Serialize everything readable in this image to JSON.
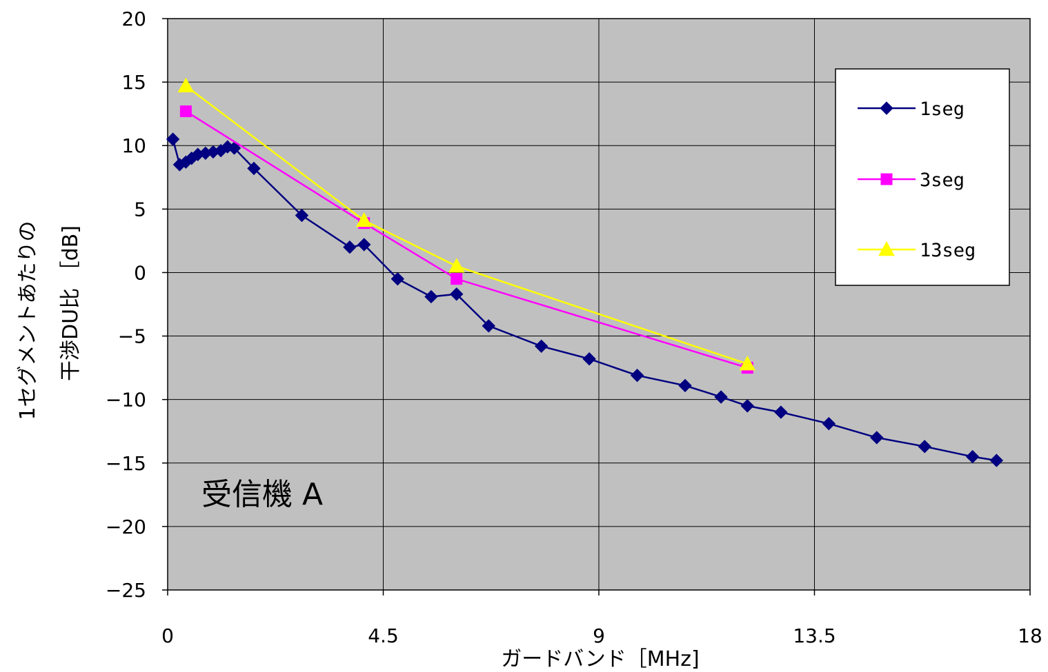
{
  "chart_data": {
    "type": "line",
    "title": "",
    "xlabel": "ガードバンド［MHz]",
    "ylabel_lines": [
      "1セグメントあたりの",
      "干渉DU比 ［dB]"
    ],
    "xlim": [
      0,
      18
    ],
    "ylim": [
      -25,
      20
    ],
    "x_ticks": [
      0,
      4.5,
      9,
      13.5,
      18
    ],
    "x_tick_labels": [
      "0",
      "4.5",
      "9",
      "13.5",
      "18"
    ],
    "y_ticks": [
      20,
      15,
      10,
      5,
      0,
      -5,
      -10,
      -15,
      -20,
      -25
    ],
    "y_tick_labels": [
      "20",
      "15",
      "10",
      "5",
      "0",
      "−5",
      "−10",
      "−15",
      "−20",
      "−25"
    ],
    "grid": true,
    "plot_background": "#c0c0c0",
    "legend_position": "top-right",
    "annotation": "受信機 A",
    "series": [
      {
        "name": "1seg",
        "color": "#000080",
        "marker": "diamond",
        "x": [
          0.11,
          0.25,
          0.38,
          0.5,
          0.63,
          0.79,
          0.95,
          1.11,
          1.25,
          1.39,
          1.8,
          2.8,
          3.8,
          4.1,
          4.8,
          5.5,
          6.03,
          6.7,
          7.8,
          8.8,
          9.8,
          10.8,
          11.55,
          12.1,
          12.8,
          13.8,
          14.8,
          15.8,
          16.8,
          17.3
        ],
        "y": [
          10.5,
          8.5,
          8.7,
          9.0,
          9.3,
          9.4,
          9.5,
          9.6,
          9.9,
          9.8,
          8.2,
          4.5,
          2.0,
          2.2,
          -0.5,
          -1.9,
          -1.7,
          -4.2,
          -5.8,
          -6.8,
          -8.1,
          -8.9,
          -9.8,
          -10.5,
          -11.0,
          -11.9,
          -13.0,
          -13.7,
          -14.5,
          -14.8
        ]
      },
      {
        "name": "3seg",
        "color": "#ff00ff",
        "marker": "square",
        "x": [
          0.38,
          4.1,
          6.03,
          12.1
        ],
        "y": [
          12.7,
          3.9,
          -0.5,
          -7.5
        ]
      },
      {
        "name": "13seg",
        "color": "#ffff00",
        "marker": "triangle",
        "x": [
          0.38,
          4.1,
          6.03,
          12.1
        ],
        "y": [
          14.7,
          4.1,
          0.5,
          -7.2
        ]
      }
    ]
  }
}
